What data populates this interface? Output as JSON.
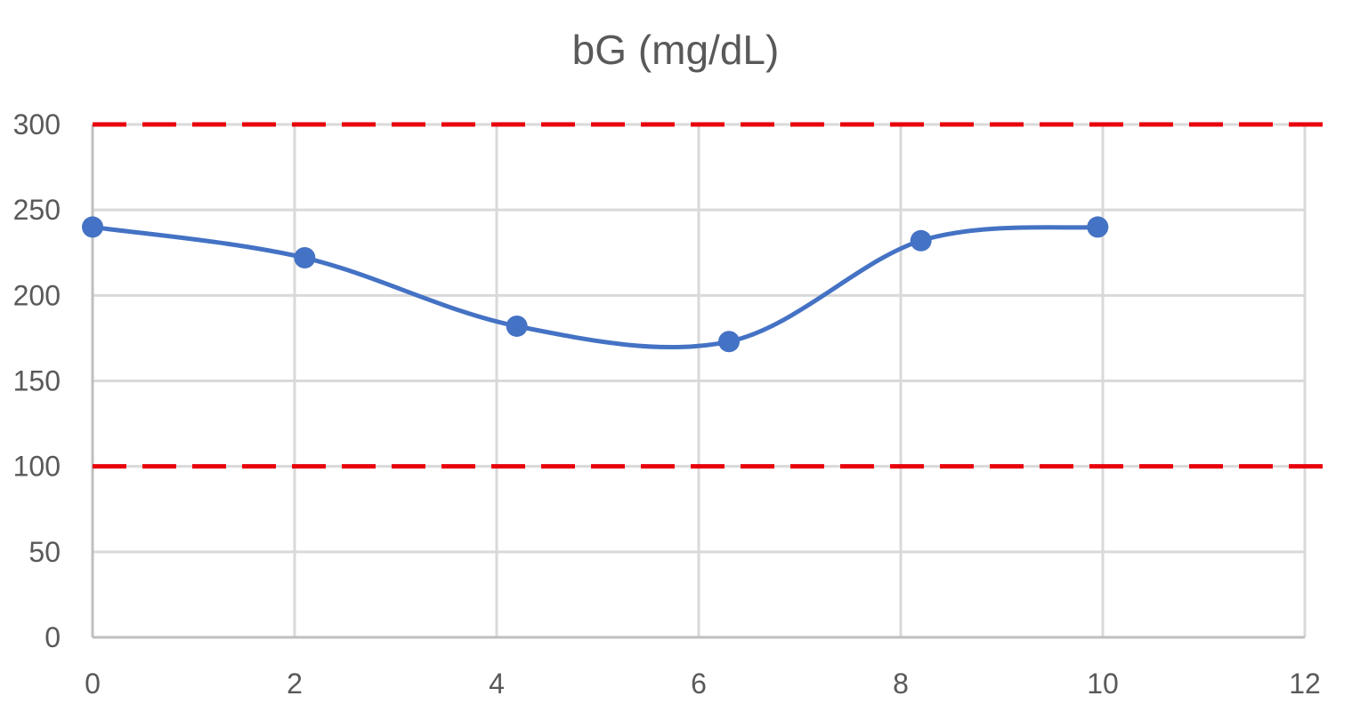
{
  "chart_data": {
    "type": "scatter",
    "title": "bG (mg/dL)",
    "xlabel": "",
    "ylabel": "",
    "xlim": [
      0,
      12
    ],
    "ylim": [
      0,
      300
    ],
    "x_ticks": [
      "0",
      "2",
      "4",
      "6",
      "8",
      "10",
      "12"
    ],
    "y_ticks": [
      "0",
      "50",
      "100",
      "150",
      "200",
      "250",
      "300"
    ],
    "grid": true,
    "legend": "none",
    "series": [
      {
        "x": [
          0,
          2.1,
          4.2,
          6.3,
          8.2,
          9.95
        ],
        "y": [
          240,
          222,
          182,
          173,
          232,
          240
        ],
        "color": "#4472C4",
        "line": "smooth",
        "markers": true
      }
    ],
    "reference_lines": [
      {
        "y": 300,
        "color": "#E8000B",
        "style": "dashed"
      },
      {
        "y": 100,
        "color": "#E8000B",
        "style": "dashed"
      }
    ],
    "colors": {
      "grid": "#D9D9D9",
      "axis": "#BFBFBF",
      "text": "#595959"
    }
  }
}
